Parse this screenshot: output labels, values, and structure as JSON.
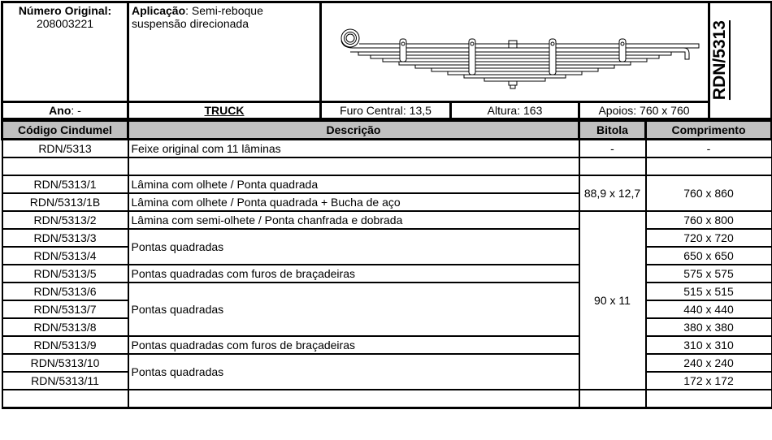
{
  "header": {
    "original_number_label": "Número Original:",
    "original_number": "208003221",
    "application_label": "Aplicação",
    "application_value": ": Semi-reboque suspensão direcionada",
    "year_label": "Ano",
    "year_value": ": -",
    "vehicle_type": "TRUCK",
    "center_hole": "Furo Central: 13,5",
    "height": "Altura: 163",
    "supports": "Apoios: 760 x 760",
    "part_code": "RDN/5313",
    "image_icon": "leaf-spring-drawing"
  },
  "table": {
    "columns": [
      "Código Cindumel",
      "Descrição",
      "Bitola",
      "Comprimento"
    ],
    "rows": [
      {
        "code": "RDN/5313",
        "description": "Feixe original com 11 lâminas",
        "gauge": "-",
        "length": "-"
      },
      {
        "code": "",
        "description": "",
        "gauge": "",
        "length": ""
      },
      {
        "code": "RDN/5313/1",
        "description": "Lâmina com olhete / Ponta quadrada",
        "gauge": "88,9 x 12,7",
        "length": "760 x 860"
      },
      {
        "code": "RDN/5313/1B",
        "description": "Lâmina com olhete / Ponta quadrada + Bucha de aço"
      },
      {
        "code": "RDN/5313/2",
        "description": "Lâmina com semi-olhete / Ponta chanfrada e dobrada",
        "gauge": "90 x 11",
        "length": "760 x 800"
      },
      {
        "code": "RDN/5313/3",
        "description": "Pontas quadradas",
        "length": "720 x 720"
      },
      {
        "code": "RDN/5313/4",
        "length": "650 x 650"
      },
      {
        "code": "RDN/5313/5",
        "description": "Pontas quadradas com furos de braçadeiras",
        "length": "575 x 575"
      },
      {
        "code": "RDN/5313/6",
        "description": "Pontas quadradas",
        "length": "515 x 515"
      },
      {
        "code": "RDN/5313/7",
        "length": "440 x 440"
      },
      {
        "code": "RDN/5313/8",
        "length": "380 x 380"
      },
      {
        "code": "RDN/5313/9",
        "description": "Pontas quadradas com furos de braçadeiras",
        "length": "310 x 310"
      },
      {
        "code": "RDN/5313/10",
        "description": "Pontas quadradas",
        "length": "240 x 240"
      },
      {
        "code": "RDN/5313/11",
        "length": "172 x 172"
      },
      {
        "code": "",
        "description": "",
        "gauge": "",
        "length": ""
      }
    ]
  }
}
